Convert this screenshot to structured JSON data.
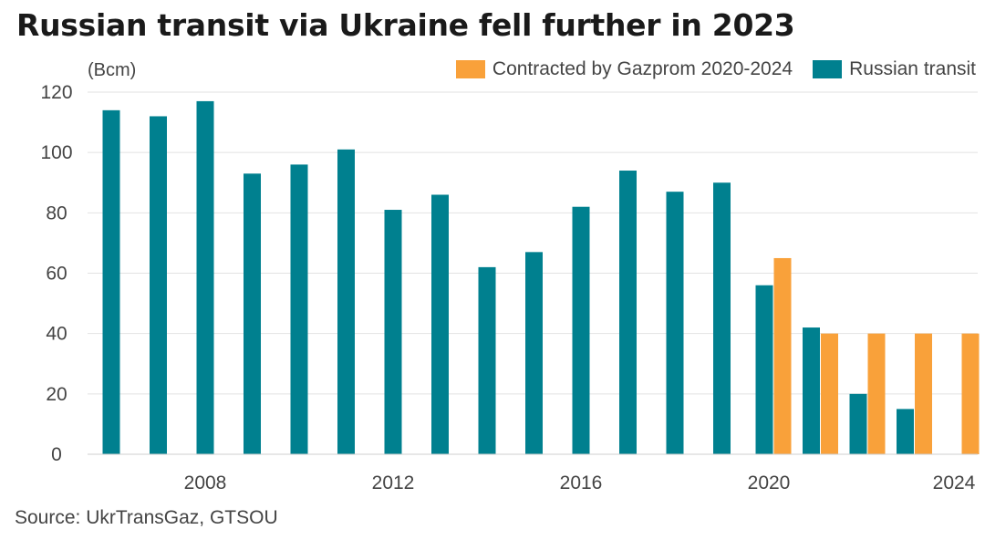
{
  "title": "Russian transit via Ukraine fell further in 2023",
  "source": "Source: UkrTransGaz, GTSOU",
  "colors": {
    "contracted": "#f9a13a",
    "transit": "#00808f",
    "grid": "#e2e2e2",
    "text": "#444444"
  },
  "chart_data": {
    "type": "bar",
    "title": "Russian transit via Ukraine fell further in 2023",
    "unit_label": "(Bcm)",
    "ylim": [
      0,
      120
    ],
    "yticks": [
      0,
      20,
      40,
      60,
      80,
      100,
      120
    ],
    "xticks": [
      "2008",
      "2012",
      "2016",
      "2020",
      "2024"
    ],
    "grid": true,
    "legend_position": "top-right",
    "categories": [
      2006,
      2007,
      2008,
      2009,
      2010,
      2011,
      2012,
      2013,
      2014,
      2015,
      2016,
      2017,
      2018,
      2019,
      2020,
      2021,
      2022,
      2023,
      2024
    ],
    "series": [
      {
        "name": "Contracted by Gazprom 2020-2024",
        "color": "#f9a13a",
        "values": [
          null,
          null,
          null,
          null,
          null,
          null,
          null,
          null,
          null,
          null,
          null,
          null,
          null,
          null,
          65,
          40,
          40,
          40,
          40
        ]
      },
      {
        "name": "Russian transit",
        "color": "#00808f",
        "values": [
          114,
          112,
          117,
          93,
          96,
          101,
          81,
          86,
          62,
          67,
          82,
          94,
          87,
          90,
          56,
          42,
          20,
          15,
          null
        ]
      }
    ]
  }
}
